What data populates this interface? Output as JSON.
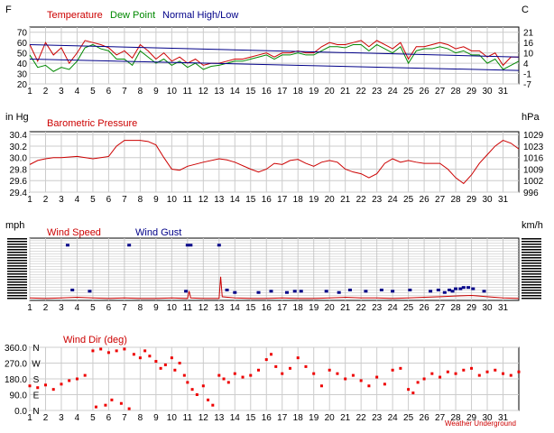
{
  "chart_data": [
    {
      "type": "line",
      "left_unit": "F",
      "right_unit": "C",
      "legend": [
        {
          "name": "Temperature",
          "color": "#cc0000"
        },
        {
          "name": "Dew Point",
          "color": "#008800"
        },
        {
          "name": "Normal High/Low",
          "color": "#000088"
        }
      ],
      "x_ticks": [
        "1",
        "2",
        "3",
        "4",
        "5",
        "6",
        "7",
        "8",
        "9",
        "10",
        "11",
        "12",
        "13",
        "14",
        "15",
        "16",
        "17",
        "18",
        "19",
        "20",
        "21",
        "22",
        "23",
        "24",
        "25",
        "26",
        "27",
        "28",
        "29",
        "30",
        "31"
      ],
      "y_ticks_left": [
        "70",
        "60",
        "50",
        "40",
        "30",
        "20"
      ],
      "y_ticks_right": [
        "21",
        "16",
        "10",
        "4",
        "-1",
        "-7"
      ],
      "ylim": [
        20,
        75
      ],
      "xlim": [
        1,
        32
      ],
      "series": [
        {
          "name": "Temperature",
          "x": [
            1,
            1.5,
            2,
            2.5,
            3,
            3.5,
            4,
            4.5,
            5,
            5.5,
            6,
            6.5,
            7,
            7.5,
            8,
            8.5,
            9,
            9.5,
            10,
            10.5,
            11,
            11.5,
            12,
            12.5,
            13,
            13.5,
            14,
            14.5,
            15,
            15.5,
            16,
            16.5,
            17,
            17.5,
            18,
            18.5,
            19,
            19.5,
            20,
            20.5,
            21,
            21.5,
            22,
            22.5,
            23,
            23.5,
            24,
            24.5,
            25,
            25.5,
            26,
            26.5,
            27,
            27.5,
            28,
            28.5,
            29,
            29.5,
            30,
            30.5,
            31,
            31.5,
            32
          ],
          "y": [
            58,
            42,
            60,
            48,
            55,
            40,
            50,
            62,
            60,
            58,
            55,
            48,
            52,
            45,
            58,
            52,
            44,
            50,
            42,
            46,
            40,
            44,
            38,
            40,
            40,
            42,
            44,
            44,
            46,
            48,
            50,
            46,
            50,
            50,
            52,
            50,
            50,
            56,
            60,
            58,
            58,
            60,
            62,
            56,
            62,
            58,
            54,
            60,
            44,
            56,
            56,
            58,
            60,
            58,
            54,
            56,
            52,
            52,
            46,
            50,
            38,
            46,
            46
          ]
        },
        {
          "name": "Dew Point",
          "x": [
            1,
            1.5,
            2,
            2.5,
            3,
            3.5,
            4,
            4.5,
            5,
            5.5,
            6,
            6.5,
            7,
            7.5,
            8,
            8.5,
            9,
            9.5,
            10,
            10.5,
            11,
            11.5,
            12,
            12.5,
            13,
            13.5,
            14,
            14.5,
            15,
            15.5,
            16,
            16.5,
            17,
            17.5,
            18,
            18.5,
            19,
            19.5,
            20,
            20.5,
            21,
            21.5,
            22,
            22.5,
            23,
            23.5,
            24,
            24.5,
            25,
            25.5,
            26,
            26.5,
            27,
            27.5,
            28,
            28.5,
            29,
            29.5,
            30,
            30.5,
            31,
            31.5,
            32
          ],
          "y": [
            48,
            36,
            38,
            32,
            36,
            34,
            42,
            55,
            58,
            54,
            52,
            44,
            44,
            38,
            52,
            46,
            40,
            44,
            38,
            42,
            36,
            40,
            34,
            37,
            38,
            40,
            42,
            42,
            44,
            46,
            48,
            44,
            48,
            48,
            50,
            48,
            48,
            52,
            56,
            56,
            55,
            58,
            58,
            52,
            58,
            54,
            50,
            56,
            40,
            52,
            54,
            54,
            56,
            54,
            50,
            52,
            48,
            48,
            40,
            44,
            34,
            38,
            42
          ]
        },
        {
          "name": "Normal High",
          "x": [
            1,
            32
          ],
          "y": [
            58,
            46
          ]
        },
        {
          "name": "Normal Low",
          "x": [
            1,
            32
          ],
          "y": [
            44,
            33
          ]
        }
      ]
    },
    {
      "type": "line",
      "title": "Barometric Pressure",
      "left_unit": "in Hg",
      "right_unit": "hPa",
      "x_ticks": [
        "1",
        "2",
        "3",
        "4",
        "5",
        "6",
        "7",
        "8",
        "9",
        "10",
        "11",
        "12",
        "13",
        "14",
        "15",
        "16",
        "17",
        "18",
        "19",
        "20",
        "21",
        "22",
        "23",
        "24",
        "25",
        "26",
        "27",
        "28",
        "29",
        "30",
        "31"
      ],
      "y_ticks_left": [
        "30.4",
        "30.2",
        "30.0",
        "29.8",
        "29.6",
        "29.4"
      ],
      "y_ticks_right": [
        "1029",
        "1023",
        "1016",
        "1009",
        "1002",
        "996"
      ],
      "ylim": [
        29.4,
        30.45
      ],
      "xlim": [
        1,
        32
      ],
      "series": [
        {
          "name": "Barometric Pressure",
          "color": "#cc0000",
          "x": [
            1,
            1.5,
            2,
            2.5,
            3,
            4,
            5,
            5.5,
            6,
            6.5,
            7,
            8,
            8.5,
            9,
            9.5,
            10,
            10.5,
            11,
            12,
            13,
            13.5,
            14,
            15,
            15.5,
            16,
            16.5,
            17,
            17.5,
            18,
            18.5,
            19,
            19.5,
            20,
            20.5,
            21,
            21.5,
            22,
            22.5,
            23,
            23.5,
            24,
            24.5,
            25,
            25.5,
            26,
            27,
            27.5,
            28,
            28.5,
            29,
            29.5,
            30,
            30.5,
            31,
            31.5,
            32
          ],
          "y": [
            29.88,
            29.95,
            29.98,
            30.0,
            30.0,
            30.02,
            29.98,
            30.0,
            30.02,
            30.2,
            30.3,
            30.3,
            30.28,
            30.22,
            30.0,
            29.8,
            29.78,
            29.85,
            29.92,
            29.98,
            29.96,
            29.92,
            29.8,
            29.75,
            29.8,
            29.9,
            29.88,
            29.95,
            29.97,
            29.9,
            29.85,
            29.92,
            29.95,
            29.92,
            29.8,
            29.75,
            29.72,
            29.65,
            29.72,
            29.9,
            29.98,
            29.92,
            29.95,
            29.92,
            29.9,
            29.9,
            29.8,
            29.65,
            29.55,
            29.7,
            29.9,
            30.05,
            30.2,
            30.3,
            30.25,
            30.15
          ]
        }
      ]
    },
    {
      "type": "scatter",
      "left_unit": "mph",
      "right_unit": "km/h",
      "legend": [
        {
          "name": "Wind Speed",
          "color": "#cc0000"
        },
        {
          "name": "Wind Gust",
          "color": "#000088"
        }
      ],
      "x_ticks": [
        "1",
        "2",
        "3",
        "4",
        "5",
        "6",
        "7",
        "8",
        "9",
        "10",
        "11",
        "12",
        "13",
        "14",
        "15",
        "16",
        "17",
        "18",
        "19",
        "20",
        "21",
        "22",
        "23",
        "24",
        "25",
        "26",
        "27",
        "28",
        "29",
        "30",
        "31"
      ],
      "ylim": [
        0,
        100
      ],
      "xlim": [
        1,
        32
      ],
      "series": [
        {
          "name": "Wind Speed",
          "type": "line",
          "x": [
            1,
            2,
            3,
            4,
            5,
            6,
            7,
            8,
            9,
            10,
            11,
            11.1,
            11.2,
            12,
            13,
            13.1,
            13.2,
            14,
            15,
            16,
            17,
            18,
            19,
            20,
            21,
            22,
            23,
            24,
            25,
            26,
            27,
            28,
            29,
            30,
            31,
            32
          ],
          "y": [
            4,
            3,
            4,
            5,
            4,
            3,
            4,
            3,
            3,
            4,
            3,
            15,
            4,
            3,
            3,
            38,
            6,
            4,
            3,
            3,
            4,
            3,
            3,
            4,
            5,
            4,
            4,
            3,
            4,
            5,
            6,
            7,
            8,
            6,
            4,
            3
          ]
        },
        {
          "name": "Wind Gust",
          "type": "scatter",
          "x": [
            3.4,
            7.3,
            11.0,
            11.2,
            13.0,
            3.7,
            4.8,
            10.9,
            13.5,
            14.0,
            15.5,
            16.3,
            17.3,
            17.8,
            18.2,
            19.8,
            20.6,
            21.3,
            22.3,
            23.3,
            24.0,
            25.1,
            26.4,
            26.9,
            27.3,
            27.6,
            27.8,
            28.0,
            28.3,
            28.5,
            28.8,
            29.1,
            29.8
          ],
          "y": [
            88,
            88,
            88,
            88,
            88,
            16,
            14,
            14,
            16,
            12,
            12,
            14,
            12,
            14,
            14,
            14,
            12,
            16,
            14,
            16,
            14,
            16,
            14,
            16,
            12,
            16,
            14,
            18,
            18,
            20,
            20,
            18,
            14
          ]
        }
      ]
    },
    {
      "type": "scatter",
      "title": "Wind Dir (deg)",
      "x_ticks": [
        "1",
        "2",
        "3",
        "4",
        "5",
        "6",
        "7",
        "8",
        "9",
        "10",
        "11",
        "12",
        "13",
        "14",
        "15",
        "16",
        "17",
        "18",
        "19",
        "20",
        "21",
        "22",
        "23",
        "24",
        "25",
        "26",
        "27",
        "28",
        "29",
        "30",
        "31"
      ],
      "y_ticks_left": [
        "360.0",
        "270.0",
        "180.0",
        "90.0",
        "0.0"
      ],
      "compass_labels": [
        "N",
        "W",
        "S",
        "E",
        "N"
      ],
      "ylim": [
        0,
        360
      ],
      "xlim": [
        1,
        32
      ],
      "watermark": "Weather Underground",
      "series": [
        {
          "name": "Wind Dir (deg)",
          "color": "#ee0000",
          "x": [
            1,
            1.5,
            2,
            2.5,
            3,
            3.5,
            4,
            4.5,
            5,
            5.2,
            5.5,
            5.8,
            6,
            6.2,
            6.5,
            6.8,
            7,
            7.3,
            7.6,
            8,
            8.3,
            8.6,
            9,
            9.3,
            9.6,
            10,
            10.2,
            10.5,
            10.8,
            11,
            11.3,
            11.6,
            12,
            12.3,
            12.6,
            13,
            13.3,
            13.6,
            14,
            14.5,
            15,
            15.5,
            16,
            16.3,
            16.6,
            17,
            17.5,
            18,
            18.5,
            19,
            19.5,
            20,
            20.5,
            21,
            21.5,
            22,
            22.5,
            23,
            23.5,
            24,
            24.5,
            25,
            25.3,
            25.6,
            26,
            26.5,
            27,
            27.5,
            28,
            28.5,
            29,
            29.5,
            30,
            30.5,
            31,
            31.5,
            32
          ],
          "y": [
            140,
            130,
            145,
            120,
            150,
            170,
            180,
            200,
            340,
            20,
            350,
            30,
            330,
            60,
            340,
            40,
            350,
            10,
            320,
            300,
            340,
            310,
            280,
            240,
            260,
            300,
            230,
            270,
            200,
            160,
            120,
            90,
            140,
            60,
            30,
            200,
            180,
            160,
            210,
            190,
            200,
            230,
            290,
            320,
            250,
            210,
            240,
            300,
            250,
            210,
            140,
            230,
            210,
            180,
            200,
            170,
            140,
            190,
            150,
            230,
            240,
            120,
            100,
            160,
            180,
            210,
            190,
            220,
            210,
            230,
            240,
            200,
            220,
            230,
            210,
            200,
            220
          ]
        }
      ]
    }
  ]
}
